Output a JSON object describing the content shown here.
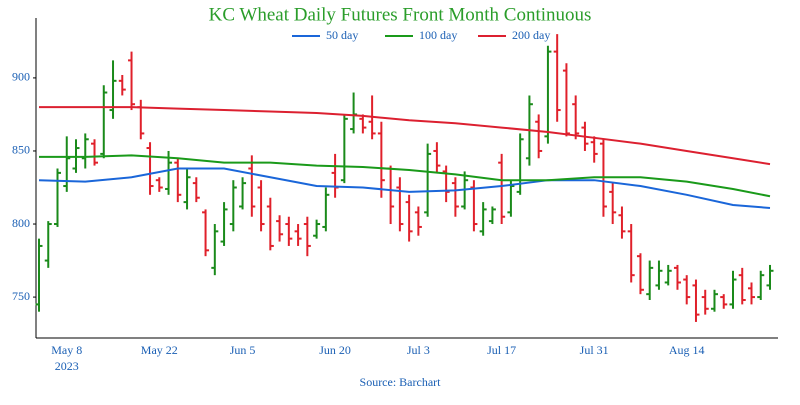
{
  "chart_data": {
    "type": "ohlc",
    "title": "KC Wheat Daily Futures Front Month Continuous",
    "source": "Source: Barchart",
    "categories": [
      null,
      null,
      null,
      "May 8",
      null,
      null,
      null,
      null,
      null,
      null,
      null,
      null,
      null,
      "May 22",
      null,
      null,
      null,
      null,
      null,
      null,
      null,
      null,
      "Jun 5",
      null,
      null,
      null,
      null,
      null,
      null,
      null,
      null,
      null,
      "Jun 20",
      null,
      null,
      null,
      null,
      null,
      null,
      null,
      null,
      "Jul 3",
      null,
      null,
      null,
      null,
      null,
      null,
      null,
      null,
      "Jul 17",
      null,
      null,
      null,
      null,
      null,
      null,
      null,
      null,
      null,
      "Jul 31",
      null,
      null,
      null,
      null,
      null,
      null,
      null,
      null,
      null,
      "Aug 14",
      null,
      null,
      null,
      null,
      null,
      null,
      null,
      null,
      null
    ],
    "year_label": "2023",
    "ylim": [
      722,
      941
    ],
    "yticks": [
      750,
      800,
      850,
      900
    ],
    "grid": false,
    "up_color": "#1a8a1a",
    "down_color": "#e0202a",
    "open": [
      745,
      775,
      800,
      826,
      838,
      845,
      855,
      848,
      878,
      898,
      912,
      880,
      852,
      830,
      824,
      842,
      815,
      828,
      808,
      770,
      788,
      800,
      812,
      838,
      825,
      812,
      802,
      800,
      795,
      800,
      792,
      798,
      835,
      830,
      865,
      872,
      870,
      862,
      838,
      825,
      815,
      808,
      808,
      850,
      836,
      828,
      812,
      825,
      795,
      802,
      842,
      808,
      822,
      845,
      870,
      860,
      918,
      905,
      882,
      866,
      856,
      855,
      822,
      806,
      795,
      778,
      752,
      758,
      760,
      770,
      762,
      758,
      750,
      742,
      750,
      745,
      765,
      756,
      750,
      758
    ],
    "high": [
      790,
      802,
      838,
      860,
      858,
      862,
      858,
      895,
      912,
      902,
      918,
      885,
      856,
      832,
      850,
      845,
      838,
      832,
      810,
      800,
      815,
      830,
      832,
      847,
      830,
      818,
      806,
      805,
      800,
      805,
      803,
      825,
      848,
      875,
      890,
      875,
      888,
      870,
      840,
      832,
      820,
      812,
      855,
      856,
      840,
      832,
      836,
      830,
      815,
      812,
      848,
      830,
      862,
      888,
      875,
      922,
      930,
      910,
      888,
      870,
      860,
      858,
      828,
      812,
      800,
      780,
      775,
      775,
      772,
      772,
      765,
      762,
      755,
      755,
      752,
      768,
      770,
      760,
      768,
      772
    ],
    "low": [
      740,
      770,
      798,
      822,
      835,
      838,
      840,
      845,
      872,
      888,
      878,
      858,
      820,
      822,
      820,
      815,
      810,
      815,
      778,
      765,
      785,
      795,
      810,
      805,
      795,
      782,
      788,
      785,
      785,
      778,
      790,
      795,
      818,
      828,
      862,
      862,
      858,
      818,
      800,
      795,
      788,
      792,
      805,
      835,
      815,
      805,
      810,
      795,
      792,
      800,
      800,
      805,
      820,
      840,
      845,
      855,
      870,
      860,
      858,
      850,
      842,
      805,
      800,
      790,
      760,
      752,
      748,
      755,
      758,
      755,
      745,
      733,
      738,
      740,
      742,
      742,
      745,
      745,
      748,
      755
    ],
    "close": [
      785,
      800,
      835,
      845,
      852,
      858,
      842,
      890,
      898,
      892,
      882,
      862,
      826,
      825,
      842,
      820,
      832,
      818,
      782,
      795,
      810,
      825,
      828,
      812,
      800,
      785,
      793,
      790,
      790,
      785,
      800,
      820,
      825,
      872,
      875,
      866,
      862,
      830,
      812,
      800,
      795,
      798,
      848,
      840,
      822,
      812,
      830,
      800,
      810,
      810,
      805,
      826,
      858,
      882,
      850,
      918,
      878,
      862,
      862,
      855,
      848,
      812,
      808,
      795,
      765,
      755,
      770,
      768,
      768,
      760,
      750,
      738,
      742,
      752,
      745,
      762,
      748,
      750,
      765,
      768
    ],
    "legend": "top",
    "series": [
      {
        "name": "50 day",
        "color": "#1a66d9",
        "x": [
          0,
          5,
          10,
          15,
          20,
          25,
          30,
          35,
          40,
          45,
          50,
          55,
          60,
          65,
          70,
          75,
          79
        ],
        "values": [
          830,
          829,
          832,
          838,
          838,
          832,
          826,
          825,
          822,
          823,
          826,
          830,
          830,
          826,
          820,
          813,
          811
        ]
      },
      {
        "name": "100 day",
        "color": "#1a9a1a",
        "x": [
          0,
          5,
          10,
          15,
          20,
          25,
          30,
          35,
          40,
          45,
          50,
          55,
          60,
          65,
          70,
          75,
          79
        ],
        "values": [
          846,
          846,
          847,
          845,
          842,
          842,
          840,
          839,
          837,
          834,
          830,
          830,
          832,
          832,
          829,
          824,
          819
        ]
      },
      {
        "name": "200 day",
        "color": "#dc2030",
        "x": [
          0,
          5,
          10,
          15,
          20,
          25,
          30,
          35,
          40,
          45,
          50,
          55,
          60,
          65,
          70,
          75,
          79
        ],
        "values": [
          880,
          880,
          880,
          879,
          878,
          877,
          876,
          874,
          871,
          869,
          866,
          863,
          859,
          855,
          850,
          845,
          841
        ]
      }
    ]
  }
}
